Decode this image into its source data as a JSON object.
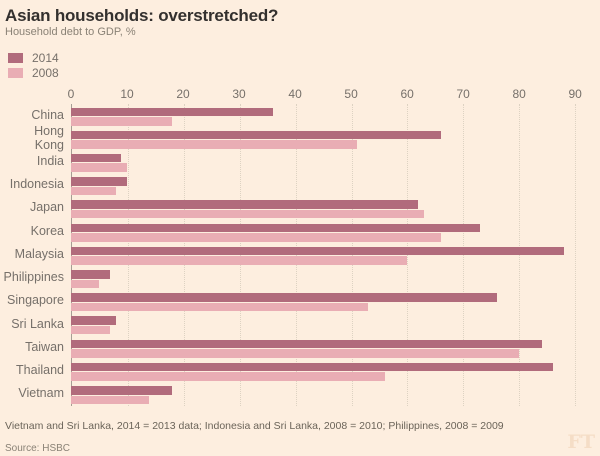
{
  "footer": {
    "note": "Vietnam and Sri Lanka, 2014 = 2013 data; Indonesia and Sri Lanka, 2008 = 2010; Philippines, 2008 = 2009",
    "source": "Source: HSBC",
    "logo": "FT"
  },
  "colors": {
    "background": "#fdeedf",
    "series_2014": "#b16b7c",
    "series_2008": "#e9adb4",
    "title_text": "#33302e",
    "subtitle_text": "#8a8276",
    "axis_text": "#76706a",
    "grid_line": "#ddd2c2",
    "axis_line": "#a59e94",
    "footnote_text": "#6b6459",
    "source_text": "#8a8276",
    "ft_logo": "#f5ddc6"
  },
  "chart_data": {
    "type": "bar",
    "orientation": "horizontal",
    "title": "Asian households: overstretched?",
    "subtitle": "Household debt to GDP, %",
    "categories": [
      "China",
      "Hong Kong",
      "India",
      "Indonesia",
      "Japan",
      "Korea",
      "Malaysia",
      "Philippines",
      "Singapore",
      "Sri Lanka",
      "Taiwan",
      "Thailand",
      "Vietnam"
    ],
    "series": [
      {
        "name": "2014",
        "values": [
          36,
          66,
          9,
          10,
          62,
          73,
          88,
          7,
          76,
          8,
          84,
          86,
          18
        ]
      },
      {
        "name": "2008",
        "values": [
          18,
          51,
          10,
          8,
          63,
          66,
          60,
          5,
          53,
          7,
          80,
          56,
          14
        ]
      }
    ],
    "x_ticks": [
      0,
      10,
      20,
      30,
      40,
      50,
      60,
      70,
      80,
      90
    ],
    "xlim": [
      0,
      93
    ],
    "grid": "vertical-dotted",
    "legend_position": "top-left"
  }
}
